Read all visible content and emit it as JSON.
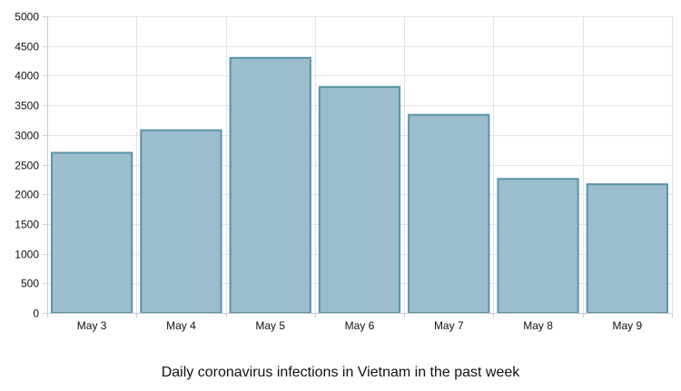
{
  "chart_data": {
    "type": "bar",
    "title": "",
    "xlabel": "",
    "ylabel": "",
    "caption": "Daily coronavirus infections in Vietnam in the past week",
    "categories": [
      "May 3",
      "May 4",
      "May 5",
      "May 6",
      "May 7",
      "May 8",
      "May 9"
    ],
    "values": [
      2700,
      3080,
      4300,
      3810,
      3340,
      2260,
      2170
    ],
    "ylim": [
      0,
      5000
    ],
    "yticks": [
      0,
      500,
      1000,
      1500,
      2000,
      2500,
      3000,
      3500,
      4000,
      4500,
      5000
    ],
    "grid": true,
    "legend": "none",
    "colors": {
      "bar_fill": "#9bbdce",
      "bar_stroke": "#5b93a8",
      "grid": "#e3e3e3",
      "axis": "#cccccc"
    }
  }
}
